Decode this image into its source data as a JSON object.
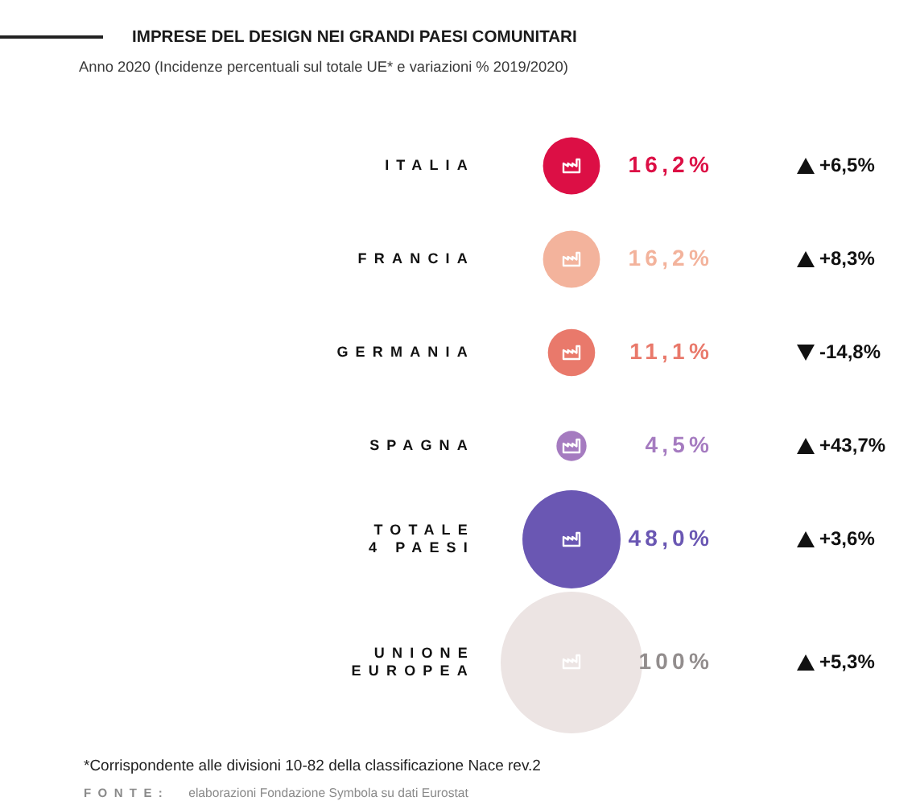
{
  "chart_data": {
    "type": "other",
    "title": "IMPRESE DEL DESIGN NEI GRANDI PAESI COMUNITARI",
    "subtitle": "Anno 2020 (Incidenze percentuali sul totale UE* e variazioni % 2019/2020)",
    "categories": [
      "ITALIA",
      "FRANCIA",
      "GERMANIA",
      "SPAGNA",
      "TOTALE\n4 PAESI",
      "UNIONE\nEUROPEA"
    ],
    "series": [
      {
        "values": [
          16.2,
          16.2,
          11.1,
          4.5,
          48.0,
          100
        ],
        "colors": [
          "#dc0f45",
          "#f3b39c",
          "#e9796b",
          "#a57bc0",
          "#6a57b3",
          "#ece4e3"
        ],
        "value_labels": [
          "16,2%",
          "16,2%",
          "11,1%",
          "4,5%",
          "48,0%",
          "100%"
        ]
      },
      {
        "color": "#111111",
        "values": [
          6.5,
          8.3,
          -14.8,
          43.7,
          3.6,
          5.3
        ],
        "value_labels": [
          "+6,5%",
          "+8,3%",
          "-14,8%",
          "+43,7%",
          "+3,6%",
          "+5,3%"
        ]
      }
    ],
    "annotations": [
      "*Corrispondente alle divisioni 10-82 della classificazione Nace rev.2",
      "FONTE: elaborazioni Fondazione Symbola su dati Eurostat"
    ]
  }
}
